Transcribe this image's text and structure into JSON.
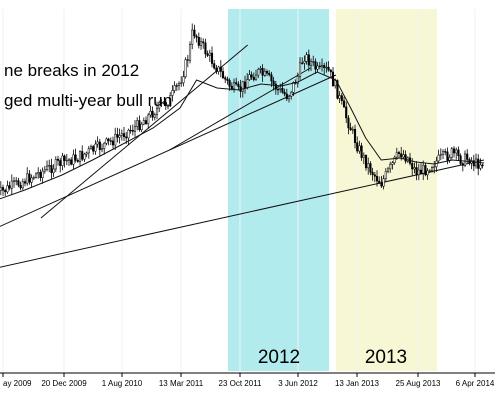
{
  "chart_data": {
    "type": "line",
    "style": "candlestick",
    "title": "",
    "annotations": [
      "ne breaks in 2012",
      "ged multi-year bull run"
    ],
    "x_tick_labels": [
      "ay 2009",
      "20 Dec 2009",
      "1 Aug 2010",
      "13 Mar 2011",
      "23 Oct 2011",
      "3 Jun 2012",
      "13 Jan 2013",
      "25 Aug 2013",
      "6 Apr 2014"
    ],
    "highlight_bands": [
      {
        "label": "2012",
        "color": "#b2ebee"
      },
      {
        "label": "2013",
        "color": "#f7f7d5"
      }
    ],
    "price_series": [
      {
        "d": "2009-04-15",
        "v": 195
      },
      {
        "d": "2009-06-01",
        "v": 188
      },
      {
        "d": "2009-08-01",
        "v": 180
      },
      {
        "d": "2009-10-01",
        "v": 172
      },
      {
        "d": "2009-12-20",
        "v": 162
      },
      {
        "d": "2010-02-15",
        "v": 158
      },
      {
        "d": "2010-04-15",
        "v": 150
      },
      {
        "d": "2010-06-15",
        "v": 143
      },
      {
        "d": "2010-08-01",
        "v": 135
      },
      {
        "d": "2010-10-01",
        "v": 126
      },
      {
        "d": "2010-12-01",
        "v": 112
      },
      {
        "d": "2011-02-01",
        "v": 100
      },
      {
        "d": "2011-03-13",
        "v": 82
      },
      {
        "d": "2011-04-15",
        "v": 55
      },
      {
        "d": "2011-05-01",
        "v": 30
      },
      {
        "d": "2011-06-15",
        "v": 50
      },
      {
        "d": "2011-08-01",
        "v": 68
      },
      {
        "d": "2011-09-15",
        "v": 85
      },
      {
        "d": "2011-10-23",
        "v": 92
      },
      {
        "d": "2011-11-25",
        "v": 78
      },
      {
        "d": "2012-01-01",
        "v": 72
      },
      {
        "d": "2012-02-10",
        "v": 78
      },
      {
        "d": "2012-03-20",
        "v": 90
      },
      {
        "d": "2012-04-25",
        "v": 96
      },
      {
        "d": "2012-06-03",
        "v": 76
      },
      {
        "d": "2012-06-25",
        "v": 55
      },
      {
        "d": "2012-07-20",
        "v": 62
      },
      {
        "d": "2012-08-20",
        "v": 72
      },
      {
        "d": "2012-09-25",
        "v": 70
      },
      {
        "d": "2012-10-25",
        "v": 88
      },
      {
        "d": "2012-11-25",
        "v": 112
      },
      {
        "d": "2012-12-20",
        "v": 128
      },
      {
        "d": "2013-01-13",
        "v": 145
      },
      {
        "d": "2013-02-15",
        "v": 162
      },
      {
        "d": "2013-03-20",
        "v": 175
      },
      {
        "d": "2013-04-15",
        "v": 183
      },
      {
        "d": "2013-05-20",
        "v": 168
      },
      {
        "d": "2013-06-25",
        "v": 152
      },
      {
        "d": "2013-07-25",
        "v": 158
      },
      {
        "d": "2013-08-25",
        "v": 172
      },
      {
        "d": "2013-09-25",
        "v": 170
      },
      {
        "d": "2013-10-25",
        "v": 164
      },
      {
        "d": "2013-12-01",
        "v": 158
      },
      {
        "d": "2014-01-10",
        "v": 153
      },
      {
        "d": "2014-02-15",
        "v": 160
      },
      {
        "d": "2014-03-15",
        "v": 158
      },
      {
        "d": "2014-04-06",
        "v": 164
      },
      {
        "d": "2014-05-10",
        "v": 162
      }
    ],
    "moving_average": [
      {
        "d": "2009-04-15",
        "v": 200
      },
      {
        "d": "2009-08-01",
        "v": 190
      },
      {
        "d": "2009-12-20",
        "v": 175
      },
      {
        "d": "2010-04-15",
        "v": 160
      },
      {
        "d": "2010-08-01",
        "v": 145
      },
      {
        "d": "2010-12-01",
        "v": 128
      },
      {
        "d": "2011-03-13",
        "v": 108
      },
      {
        "d": "2011-05-15",
        "v": 80
      },
      {
        "d": "2011-08-01",
        "v": 88
      },
      {
        "d": "2011-10-23",
        "v": 90
      },
      {
        "d": "2012-01-15",
        "v": 84
      },
      {
        "d": "2012-04-01",
        "v": 86
      },
      {
        "d": "2012-06-03",
        "v": 82
      },
      {
        "d": "2012-08-15",
        "v": 72
      },
      {
        "d": "2012-10-25",
        "v": 80
      },
      {
        "d": "2012-12-20",
        "v": 108
      },
      {
        "d": "2013-02-15",
        "v": 138
      },
      {
        "d": "2013-04-15",
        "v": 160
      },
      {
        "d": "2013-06-25",
        "v": 158
      },
      {
        "d": "2013-08-25",
        "v": 162
      },
      {
        "d": "2013-11-01",
        "v": 164
      },
      {
        "d": "2014-01-10",
        "v": 160
      },
      {
        "d": "2014-04-06",
        "v": 162
      },
      {
        "d": "2014-05-10",
        "v": 163
      }
    ],
    "trendlines": [
      {
        "from": {
          "d": "2009-04-15",
          "v": 268
        },
        "to": {
          "d": "2014-05-10",
          "v": 160
        }
      },
      {
        "from": {
          "d": "2009-04-15",
          "v": 228
        },
        "to": {
          "d": "2012-10-25",
          "v": 75
        }
      },
      {
        "from": {
          "d": "2009-10-01",
          "v": 218
        },
        "to": {
          "d": "2011-11-25",
          "v": 45
        }
      },
      {
        "from": {
          "d": "2011-02-01",
          "v": 150
        },
        "to": {
          "d": "2012-07-20",
          "v": 68
        }
      }
    ]
  }
}
